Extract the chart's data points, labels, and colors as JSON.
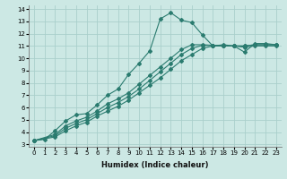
{
  "xlabel": "Humidex (Indice chaleur)",
  "bg_color": "#cce8e4",
  "line_color": "#2a7b6f",
  "grid_color": "#aacfcb",
  "xlim": [
    -0.5,
    23.5
  ],
  "ylim": [
    2.8,
    14.3
  ],
  "xticks": [
    0,
    1,
    2,
    3,
    4,
    5,
    6,
    7,
    8,
    9,
    10,
    11,
    12,
    13,
    14,
    15,
    16,
    17,
    18,
    19,
    20,
    21,
    22,
    23
  ],
  "yticks": [
    3,
    4,
    5,
    6,
    7,
    8,
    9,
    10,
    11,
    12,
    13,
    14
  ],
  "line1_x": [
    0,
    1,
    2,
    3,
    4,
    5,
    6,
    7,
    8,
    9,
    10,
    11,
    12,
    13,
    14,
    15,
    16,
    17,
    18,
    19,
    20,
    21,
    22,
    23
  ],
  "line1_y": [
    3.3,
    3.4,
    4.1,
    4.9,
    5.4,
    5.5,
    6.2,
    7.0,
    7.5,
    8.7,
    9.6,
    10.6,
    13.2,
    13.7,
    13.1,
    12.9,
    11.9,
    11.0,
    11.1,
    11.0,
    10.5,
    11.2,
    11.2,
    11.1
  ],
  "line2_x": [
    0,
    2,
    3,
    4,
    5,
    6,
    7,
    8,
    9,
    10,
    11,
    12,
    13,
    14,
    15,
    16,
    17,
    18,
    19,
    20,
    21,
    22,
    23
  ],
  "line2_y": [
    3.3,
    3.8,
    4.5,
    4.9,
    5.2,
    5.7,
    6.3,
    6.7,
    7.2,
    7.9,
    8.6,
    9.3,
    10.0,
    10.7,
    11.1,
    11.1,
    11.05,
    11.0,
    11.0,
    11.0,
    11.1,
    11.1,
    11.1
  ],
  "line3_x": [
    0,
    2,
    3,
    4,
    5,
    6,
    7,
    8,
    9,
    10,
    11,
    12,
    13,
    14,
    15,
    16,
    17,
    18,
    19,
    20,
    21,
    22,
    23
  ],
  "line3_y": [
    3.3,
    3.7,
    4.3,
    4.7,
    5.0,
    5.5,
    6.0,
    6.4,
    6.9,
    7.5,
    8.2,
    8.9,
    9.6,
    10.3,
    10.8,
    11.05,
    11.05,
    11.0,
    11.0,
    11.0,
    11.1,
    11.1,
    11.1
  ],
  "line4_x": [
    0,
    2,
    3,
    4,
    5,
    6,
    7,
    8,
    9,
    10,
    11,
    12,
    13,
    14,
    15,
    16,
    17,
    18,
    19,
    20,
    21,
    22,
    23
  ],
  "line4_y": [
    3.3,
    3.6,
    4.1,
    4.5,
    4.8,
    5.3,
    5.7,
    6.1,
    6.6,
    7.2,
    7.8,
    8.4,
    9.1,
    9.8,
    10.3,
    10.8,
    11.0,
    11.0,
    11.0,
    10.9,
    11.0,
    11.0,
    11.0
  ]
}
